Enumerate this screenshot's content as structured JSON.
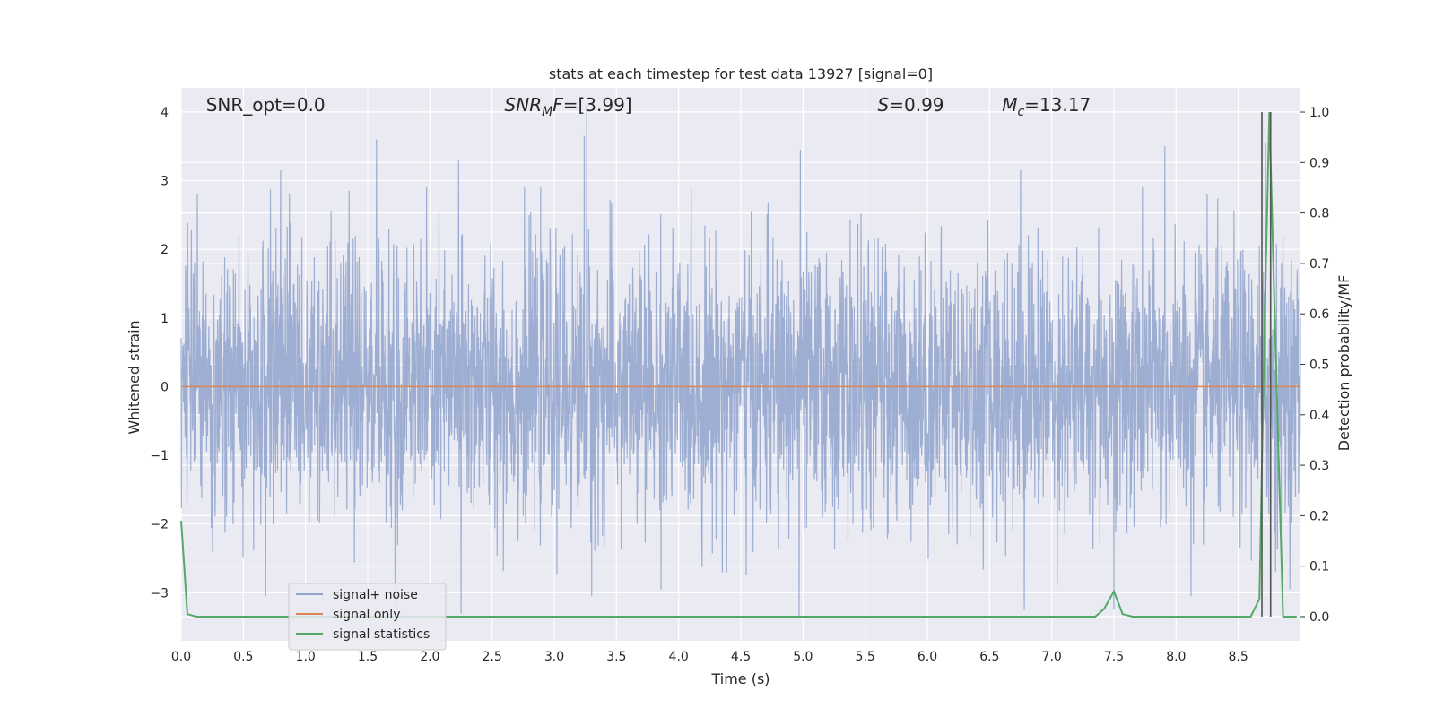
{
  "chart_data": {
    "type": "line",
    "title": "stats at each timestep for test data 13927 [signal=0]",
    "xlabel": "Time (s)",
    "ylabel": "Whitened strain",
    "y2label": "Detection probability/MF",
    "xlim": [
      0.0,
      9.0
    ],
    "ylim": [
      -3.7,
      4.35
    ],
    "y2lim": [
      -0.048,
      1.048
    ],
    "xticks": [
      "0.0",
      "0.5",
      "1.0",
      "1.5",
      "2.0",
      "2.5",
      "3.0",
      "3.5",
      "4.0",
      "4.5",
      "5.0",
      "5.5",
      "6.0",
      "6.5",
      "7.0",
      "7.5",
      "8.0",
      "8.5"
    ],
    "yticks": [
      "4",
      "3",
      "2",
      "1",
      "0",
      "−1",
      "−2",
      "−3"
    ],
    "y2ticks": [
      "1.0",
      "0.9",
      "0.8",
      "0.7",
      "0.6",
      "0.5",
      "0.4",
      "0.3",
      "0.2",
      "0.1",
      "0.0"
    ],
    "grid": true,
    "legend_position": "lower-left",
    "annotations": [
      {
        "prefix": "SNR_opt=",
        "sub": "",
        "suffix": "",
        "value": "0.0",
        "x": 0.2
      },
      {
        "prefix": "SNR",
        "sub": "M",
        "suffix": "F=",
        "value": "[3.99]",
        "x": 2.6
      },
      {
        "prefix": "S",
        "sub": "",
        "suffix": "=",
        "value": "0.99",
        "x": 5.6
      },
      {
        "prefix": "M",
        "sub": "c",
        "suffix": "=",
        "value": "13.17",
        "x": 6.6
      }
    ],
    "series": [
      {
        "name": "signal+ noise",
        "axis": "left",
        "color": "#8fa3cc",
        "kind": "noise",
        "n_samples": 3600,
        "envelope_sigma": 0.98,
        "spikes": [
          {
            "x": 0.13,
            "y": 2.8
          },
          {
            "x": 0.8,
            "y": 3.15
          },
          {
            "x": 0.87,
            "y": 2.8
          },
          {
            "x": 1.35,
            "y": 2.85
          },
          {
            "x": 1.57,
            "y": 3.6
          },
          {
            "x": 2.23,
            "y": 3.3
          },
          {
            "x": 3.26,
            "y": 4.1
          },
          {
            "x": 3.24,
            "y": 3.65
          },
          {
            "x": 4.98,
            "y": 3.45
          },
          {
            "x": 6.75,
            "y": 3.15
          },
          {
            "x": 7.91,
            "y": 3.5
          },
          {
            "x": 8.72,
            "y": 3.55
          },
          {
            "x": 0.68,
            "y": -3.05
          },
          {
            "x": 1.72,
            "y": -3.2
          },
          {
            "x": 2.25,
            "y": -3.3
          },
          {
            "x": 3.3,
            "y": -3.05
          },
          {
            "x": 4.97,
            "y": -3.35
          },
          {
            "x": 6.78,
            "y": -3.25
          },
          {
            "x": 7.5,
            "y": -3.25
          },
          {
            "x": 8.12,
            "y": -3.05
          },
          {
            "x": 8.8,
            "y": -2.7
          }
        ],
        "dip": {
          "x": 1.7,
          "y": 0.72
        }
      },
      {
        "name": "signal only",
        "axis": "left",
        "color": "#dd8452",
        "x": [
          0.0,
          9.0
        ],
        "y": [
          0.0,
          0.0
        ]
      },
      {
        "name": "signal statistics",
        "axis": "right",
        "color": "#55a868",
        "x": [
          0.0,
          0.05,
          0.12,
          7.35,
          7.42,
          7.5,
          7.57,
          7.65,
          8.6,
          8.67,
          8.71,
          8.75,
          8.8,
          8.86,
          8.92,
          8.97
        ],
        "y": [
          0.19,
          0.005,
          0.0,
          0.0,
          0.015,
          0.05,
          0.005,
          0.0,
          0.0,
          0.035,
          0.56,
          1.0,
          0.53,
          0.0,
          0.0,
          0.0
        ]
      }
    ],
    "vlines": [
      {
        "x": 8.69,
        "ymin": 0.0,
        "ymax": 1.0,
        "color": "#555555"
      },
      {
        "x": 8.76,
        "ymin": 0.0,
        "ymax": 1.0,
        "color": "#555555"
      }
    ]
  }
}
